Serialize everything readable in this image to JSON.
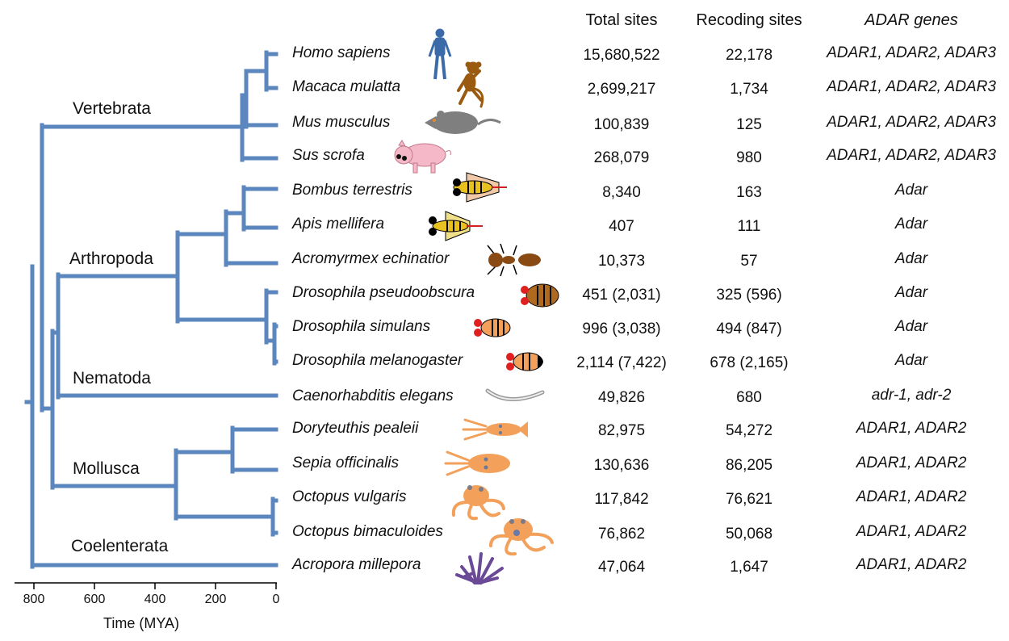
{
  "headers": {
    "total": "Total sites",
    "recoding": "Recoding sites",
    "genes_italic": "ADAR",
    "genes_rest": " genes"
  },
  "clades": [
    "Vertebrata",
    "Arthropoda",
    "Nematoda",
    "Mollusca",
    "Coelenterata"
  ],
  "rows": [
    {
      "species": "Homo sapiens",
      "total": "15,680,522",
      "recoding": "22,178",
      "genes": "ADAR1, ADAR2, ADAR3",
      "icon": "human-icon"
    },
    {
      "species": "Macaca mulatta",
      "total": "2,699,217",
      "recoding": "1,734",
      "genes": "ADAR1, ADAR2, ADAR3",
      "icon": "monkey-icon"
    },
    {
      "species": "Mus musculus",
      "total": "100,839",
      "recoding": "125",
      "genes": "ADAR1, ADAR2, ADAR3",
      "icon": "mouse-icon"
    },
    {
      "species": "Sus scrofa",
      "total": "268,079",
      "recoding": "980",
      "genes": "ADAR1, ADAR2, ADAR3",
      "icon": "pig-icon"
    },
    {
      "species": "Bombus terrestris",
      "total": "8,340",
      "recoding": "163",
      "genes": "Adar",
      "icon": "bumblebee-icon"
    },
    {
      "species": "Apis mellifera",
      "total": "407",
      "recoding": "111",
      "genes": "Adar",
      "icon": "honeybee-icon"
    },
    {
      "species": "Acromyrmex echinatior",
      "total": "10,373",
      "recoding": "57",
      "genes": "Adar",
      "icon": "ant-icon"
    },
    {
      "species": "Drosophila pseudoobscura",
      "total": "451 (2,031)",
      "recoding": "325 (596)",
      "genes": "Adar",
      "icon": "fly-icon"
    },
    {
      "species": "Drosophila simulans",
      "total": "996 (3,038)",
      "recoding": "494 (847)",
      "genes": "Adar",
      "icon": "fly-icon"
    },
    {
      "species": "Drosophila melanogaster",
      "total": "2,114 (7,422)",
      "recoding": "678 (2,165)",
      "genes": "Adar",
      "icon": "fly-icon"
    },
    {
      "species": "Caenorhabditis elegans",
      "total": "49,826",
      "recoding": "680",
      "genes": "adr-1, adr-2",
      "icon": "worm-icon"
    },
    {
      "species": "Doryteuthis pealeii",
      "total": "82,975",
      "recoding": "54,272",
      "genes": "ADAR1, ADAR2",
      "icon": "squid-icon"
    },
    {
      "species": "Sepia officinalis",
      "total": "130,636",
      "recoding": "86,205",
      "genes": "ADAR1, ADAR2",
      "icon": "cuttlefish-icon"
    },
    {
      "species": "Octopus vulgaris",
      "total": "117,842",
      "recoding": "76,621",
      "genes": "ADAR1, ADAR2",
      "icon": "octopus-icon"
    },
    {
      "species": "Octopus bimaculoides",
      "total": "76,862",
      "recoding": "50,068",
      "genes": "ADAR1, ADAR2",
      "icon": "octopus-icon"
    },
    {
      "species": "Acropora millepora",
      "total": "47,064",
      "recoding": "1,647",
      "genes": "ADAR1, ADAR2",
      "icon": "coral-icon"
    }
  ],
  "axis": {
    "ticks": [
      "800",
      "600",
      "400",
      "200",
      "0"
    ],
    "label": "Time (MYA)"
  },
  "colors": {
    "tree": "#5b86be",
    "human": "#3a6aa8",
    "monkey": "#9a5a10",
    "mouse": "#7f7f7f",
    "pig": "#f4b8c8",
    "insect": "#d9a13a",
    "ant": "#8a4a14",
    "orange": "#f2a05a",
    "coral": "#6a4a96"
  }
}
